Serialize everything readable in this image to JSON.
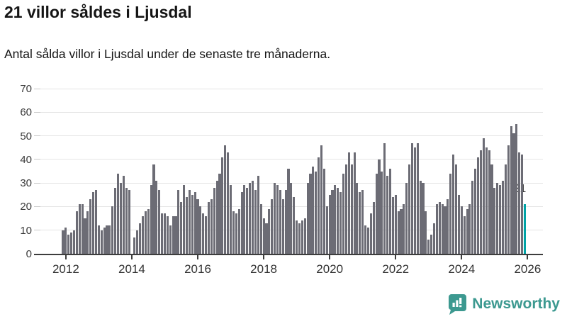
{
  "header": {
    "title": "21 villor såldes i Ljusdal",
    "subtitle": "Antal sålda villor i Ljusdal under de senaste tre månaderna."
  },
  "chart_data": {
    "type": "bar",
    "title": "21 villor såldes i Ljusdal",
    "xlabel": "",
    "ylabel": "",
    "ylim": [
      0,
      70
    ],
    "grid": "horizontal",
    "x_start": "2011-12",
    "x_frequency": "monthly",
    "x_tick_labels": [
      "2012",
      "2014",
      "2016",
      "2018",
      "2020",
      "2022",
      "2024",
      "2026"
    ],
    "y_tick_labels": [
      "0",
      "10",
      "20",
      "30",
      "40",
      "50",
      "60",
      "70"
    ],
    "y_ticks": [
      0,
      10,
      20,
      30,
      40,
      50,
      60,
      70
    ],
    "values": [
      10,
      11,
      8,
      9,
      10,
      18,
      21,
      21,
      15,
      18,
      23,
      26,
      27,
      12,
      10,
      11,
      12,
      12,
      20,
      28,
      34,
      30,
      33,
      28,
      27,
      0,
      7,
      10,
      13,
      16,
      18,
      19,
      29,
      38,
      31,
      27,
      17,
      17,
      16,
      12,
      16,
      16,
      27,
      22,
      29,
      24,
      27,
      25,
      26,
      23,
      20,
      17,
      16,
      22,
      23,
      28,
      31,
      34,
      41,
      46,
      43,
      29,
      18,
      17,
      19,
      26,
      29,
      28,
      30,
      31,
      27,
      33,
      21,
      15,
      13,
      19,
      23,
      30,
      29,
      27,
      23,
      27,
      36,
      30,
      24,
      14,
      13,
      14,
      15,
      30,
      34,
      37,
      35,
      41,
      46,
      36,
      20,
      25,
      27,
      29,
      28,
      26,
      34,
      38,
      43,
      38,
      43,
      30,
      26,
      27,
      12,
      11,
      17,
      22,
      34,
      40,
      35,
      47,
      33,
      36,
      24,
      25,
      18,
      19,
      21,
      30,
      38,
      47,
      45,
      47,
      31,
      30,
      18,
      6,
      8,
      13,
      21,
      22,
      21,
      20,
      23,
      34,
      42,
      38,
      25,
      20,
      16,
      19,
      21,
      31,
      36,
      41,
      44,
      49,
      45,
      44,
      38,
      28,
      30,
      29,
      31,
      38,
      46,
      54,
      51,
      55,
      43,
      42,
      21
    ],
    "highlight_last": true,
    "last_value_label": "21",
    "bar_color": "#6c6c75",
    "highlight_color": "#00a3a6",
    "legend": "none"
  },
  "footer": {
    "brand": "Newsworthy",
    "brand_color": "#3c9990"
  }
}
